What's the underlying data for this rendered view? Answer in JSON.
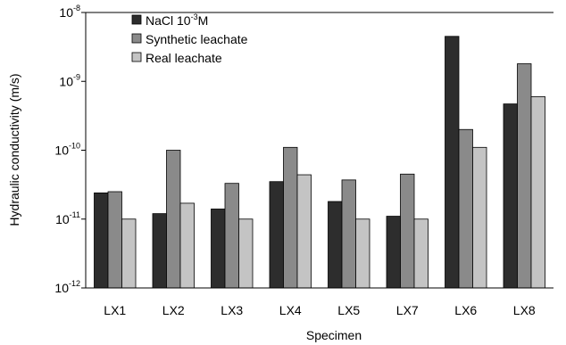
{
  "chart_data": {
    "type": "bar",
    "xlabel": "Specimen",
    "ylabel": "Hydraulic conductivity (m/s)",
    "y_scale": "log",
    "ylim": [
      1e-12,
      1e-08
    ],
    "y_ticks": [
      {
        "base": "10",
        "exp": "-8",
        "value": 1e-08
      },
      {
        "base": "10",
        "exp": "-9",
        "value": 1e-09
      },
      {
        "base": "10",
        "exp": "-10",
        "value": 1e-10
      },
      {
        "base": "10",
        "exp": "-11",
        "value": 1e-11
      },
      {
        "base": "10",
        "exp": "-12",
        "value": 1e-12
      }
    ],
    "categories": [
      "LX1",
      "LX2",
      "LX3",
      "LX4",
      "LX5",
      "LX7",
      "LX6",
      "LX8"
    ],
    "legend_position": "top-left",
    "series": [
      {
        "name": "NaCl 10-3M",
        "name_parts": {
          "pre": "NaCl 10",
          "sup": "-3",
          "post": "M"
        },
        "color": "#2d2d2d",
        "values": [
          2.4e-11,
          1.2e-11,
          1.4e-11,
          3.5e-11,
          1.8e-11,
          1.1e-11,
          4.5e-09,
          4.7e-10
        ]
      },
      {
        "name": "Synthetic leachate",
        "color": "#8a8a8a",
        "values": [
          2.5e-11,
          1e-10,
          3.3e-11,
          1.1e-10,
          3.7e-11,
          4.5e-11,
          2e-10,
          1.8e-09
        ]
      },
      {
        "name": "Real leachate",
        "color": "#c4c4c4",
        "values": [
          1e-11,
          1.7e-11,
          1e-11,
          4.4e-11,
          1e-11,
          1e-11,
          1.1e-10,
          6e-10
        ]
      }
    ]
  }
}
